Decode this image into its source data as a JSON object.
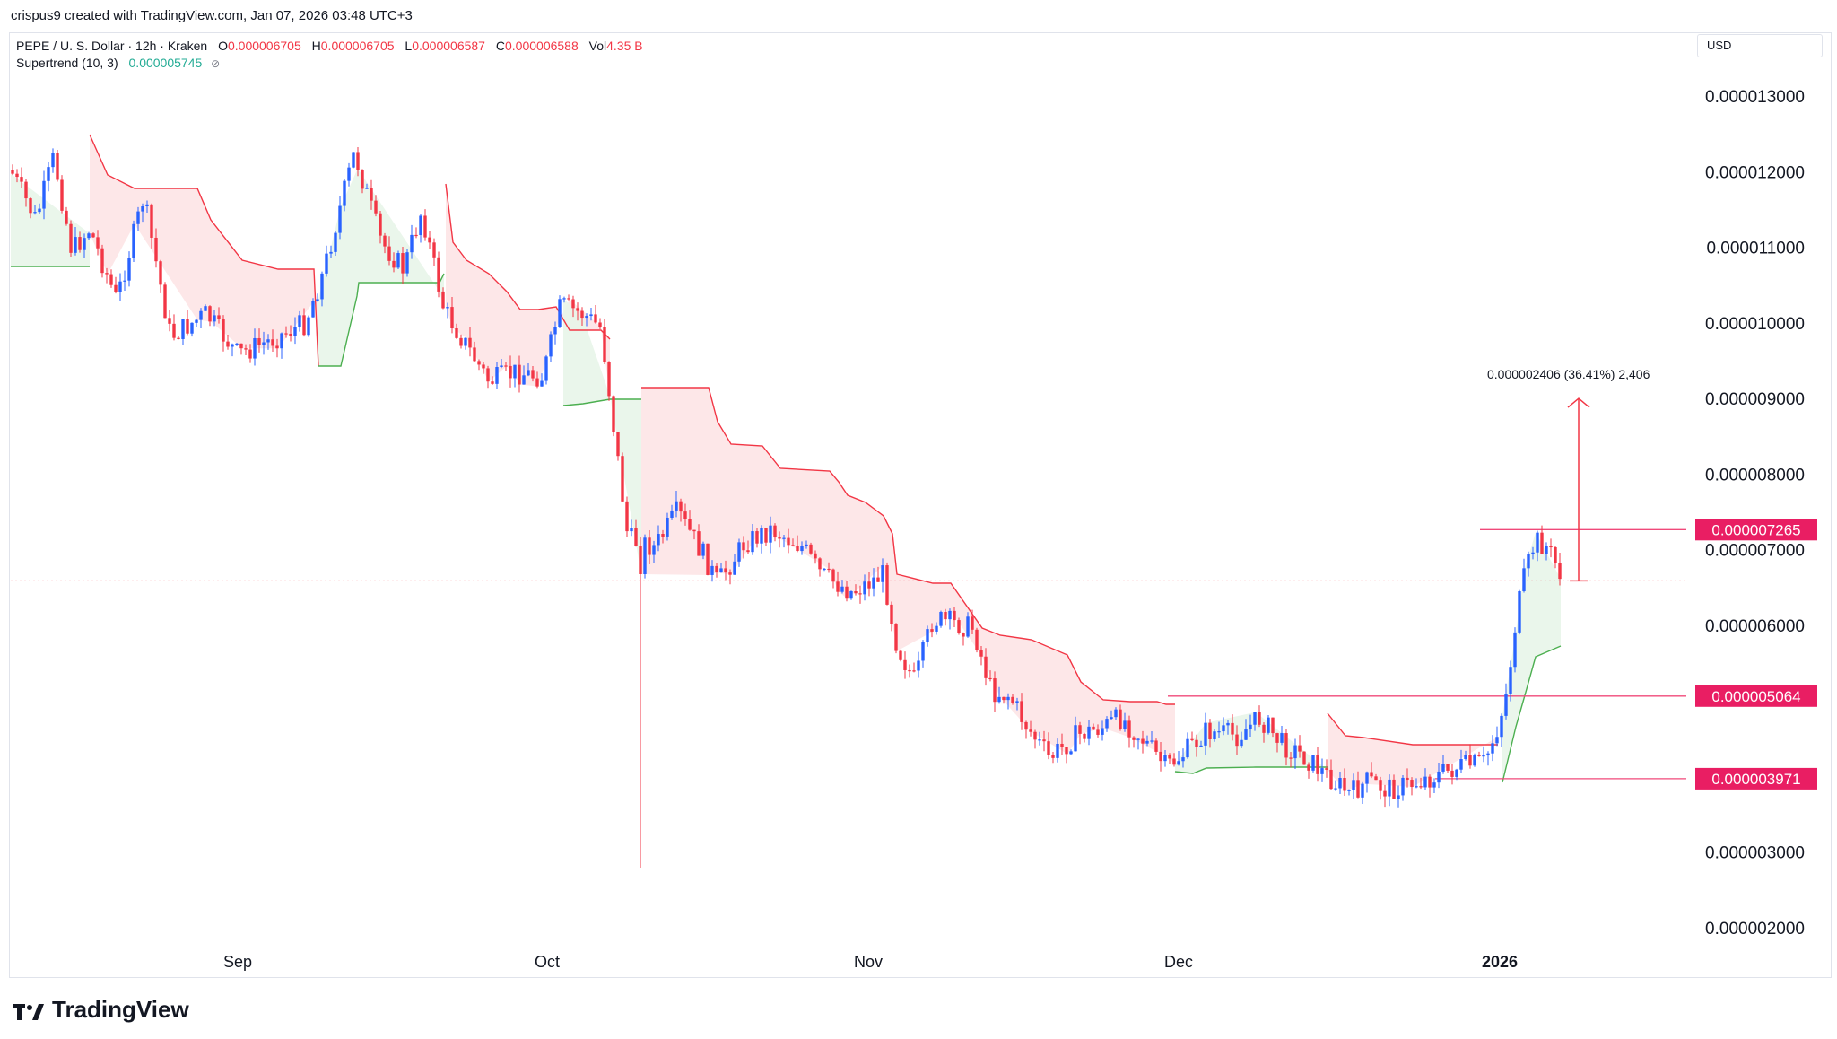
{
  "credit": "crispus9 created with TradingView.com, Jan 07, 2026 03:48 UTC+3",
  "legend": {
    "symbol": "PEPE / U. S. Dollar · 12h · Kraken",
    "o_label": "O",
    "o_value": "0.000006705",
    "h_label": "H",
    "h_value": "0.000006705",
    "l_label": "L",
    "l_value": "0.000006587",
    "c_label": "C",
    "c_value": "0.000006588",
    "vol_label": "Vol",
    "vol_value": "4.35 B",
    "indicator": "Supertrend (10, 3)",
    "indicator_value": "0.000005745"
  },
  "currency": "USD",
  "brand": "TradingView",
  "colors": {
    "up": "#2962ff",
    "down": "#f23645",
    "supertrend_up": "#4caf50",
    "supertrend_down": "#f23645",
    "fill_up": "#e8f5e9",
    "fill_down": "#fde4e6",
    "level": "#f0497a",
    "level_label_bg": "#e91e63"
  },
  "chart_data": {
    "type": "candlestick",
    "price_axis": {
      "min": 2e-06,
      "max": 1.3e-05,
      "ticks": [
        "0.000013000",
        "0.000012000",
        "0.000011000",
        "0.000010000",
        "0.000009000",
        "0.000008000",
        "0.000007000",
        "0.000006000",
        "0.000003000",
        "0.000002000"
      ]
    },
    "time_axis": [
      "Sep",
      "Oct",
      "Nov",
      "Dec",
      "2026"
    ],
    "horizontal_levels": [
      {
        "label": "0.000007265",
        "value": 7.265e-06
      },
      {
        "label": "0.000005064",
        "value": 5.064e-06
      },
      {
        "label": "0.000003971",
        "value": 3.971e-06
      }
    ],
    "last_price": 6.588e-06,
    "measure_annotation": "0.000002406 (36.41%) 2,406",
    "measure_from": 6.588e-06,
    "measure_to": 9e-06
  }
}
